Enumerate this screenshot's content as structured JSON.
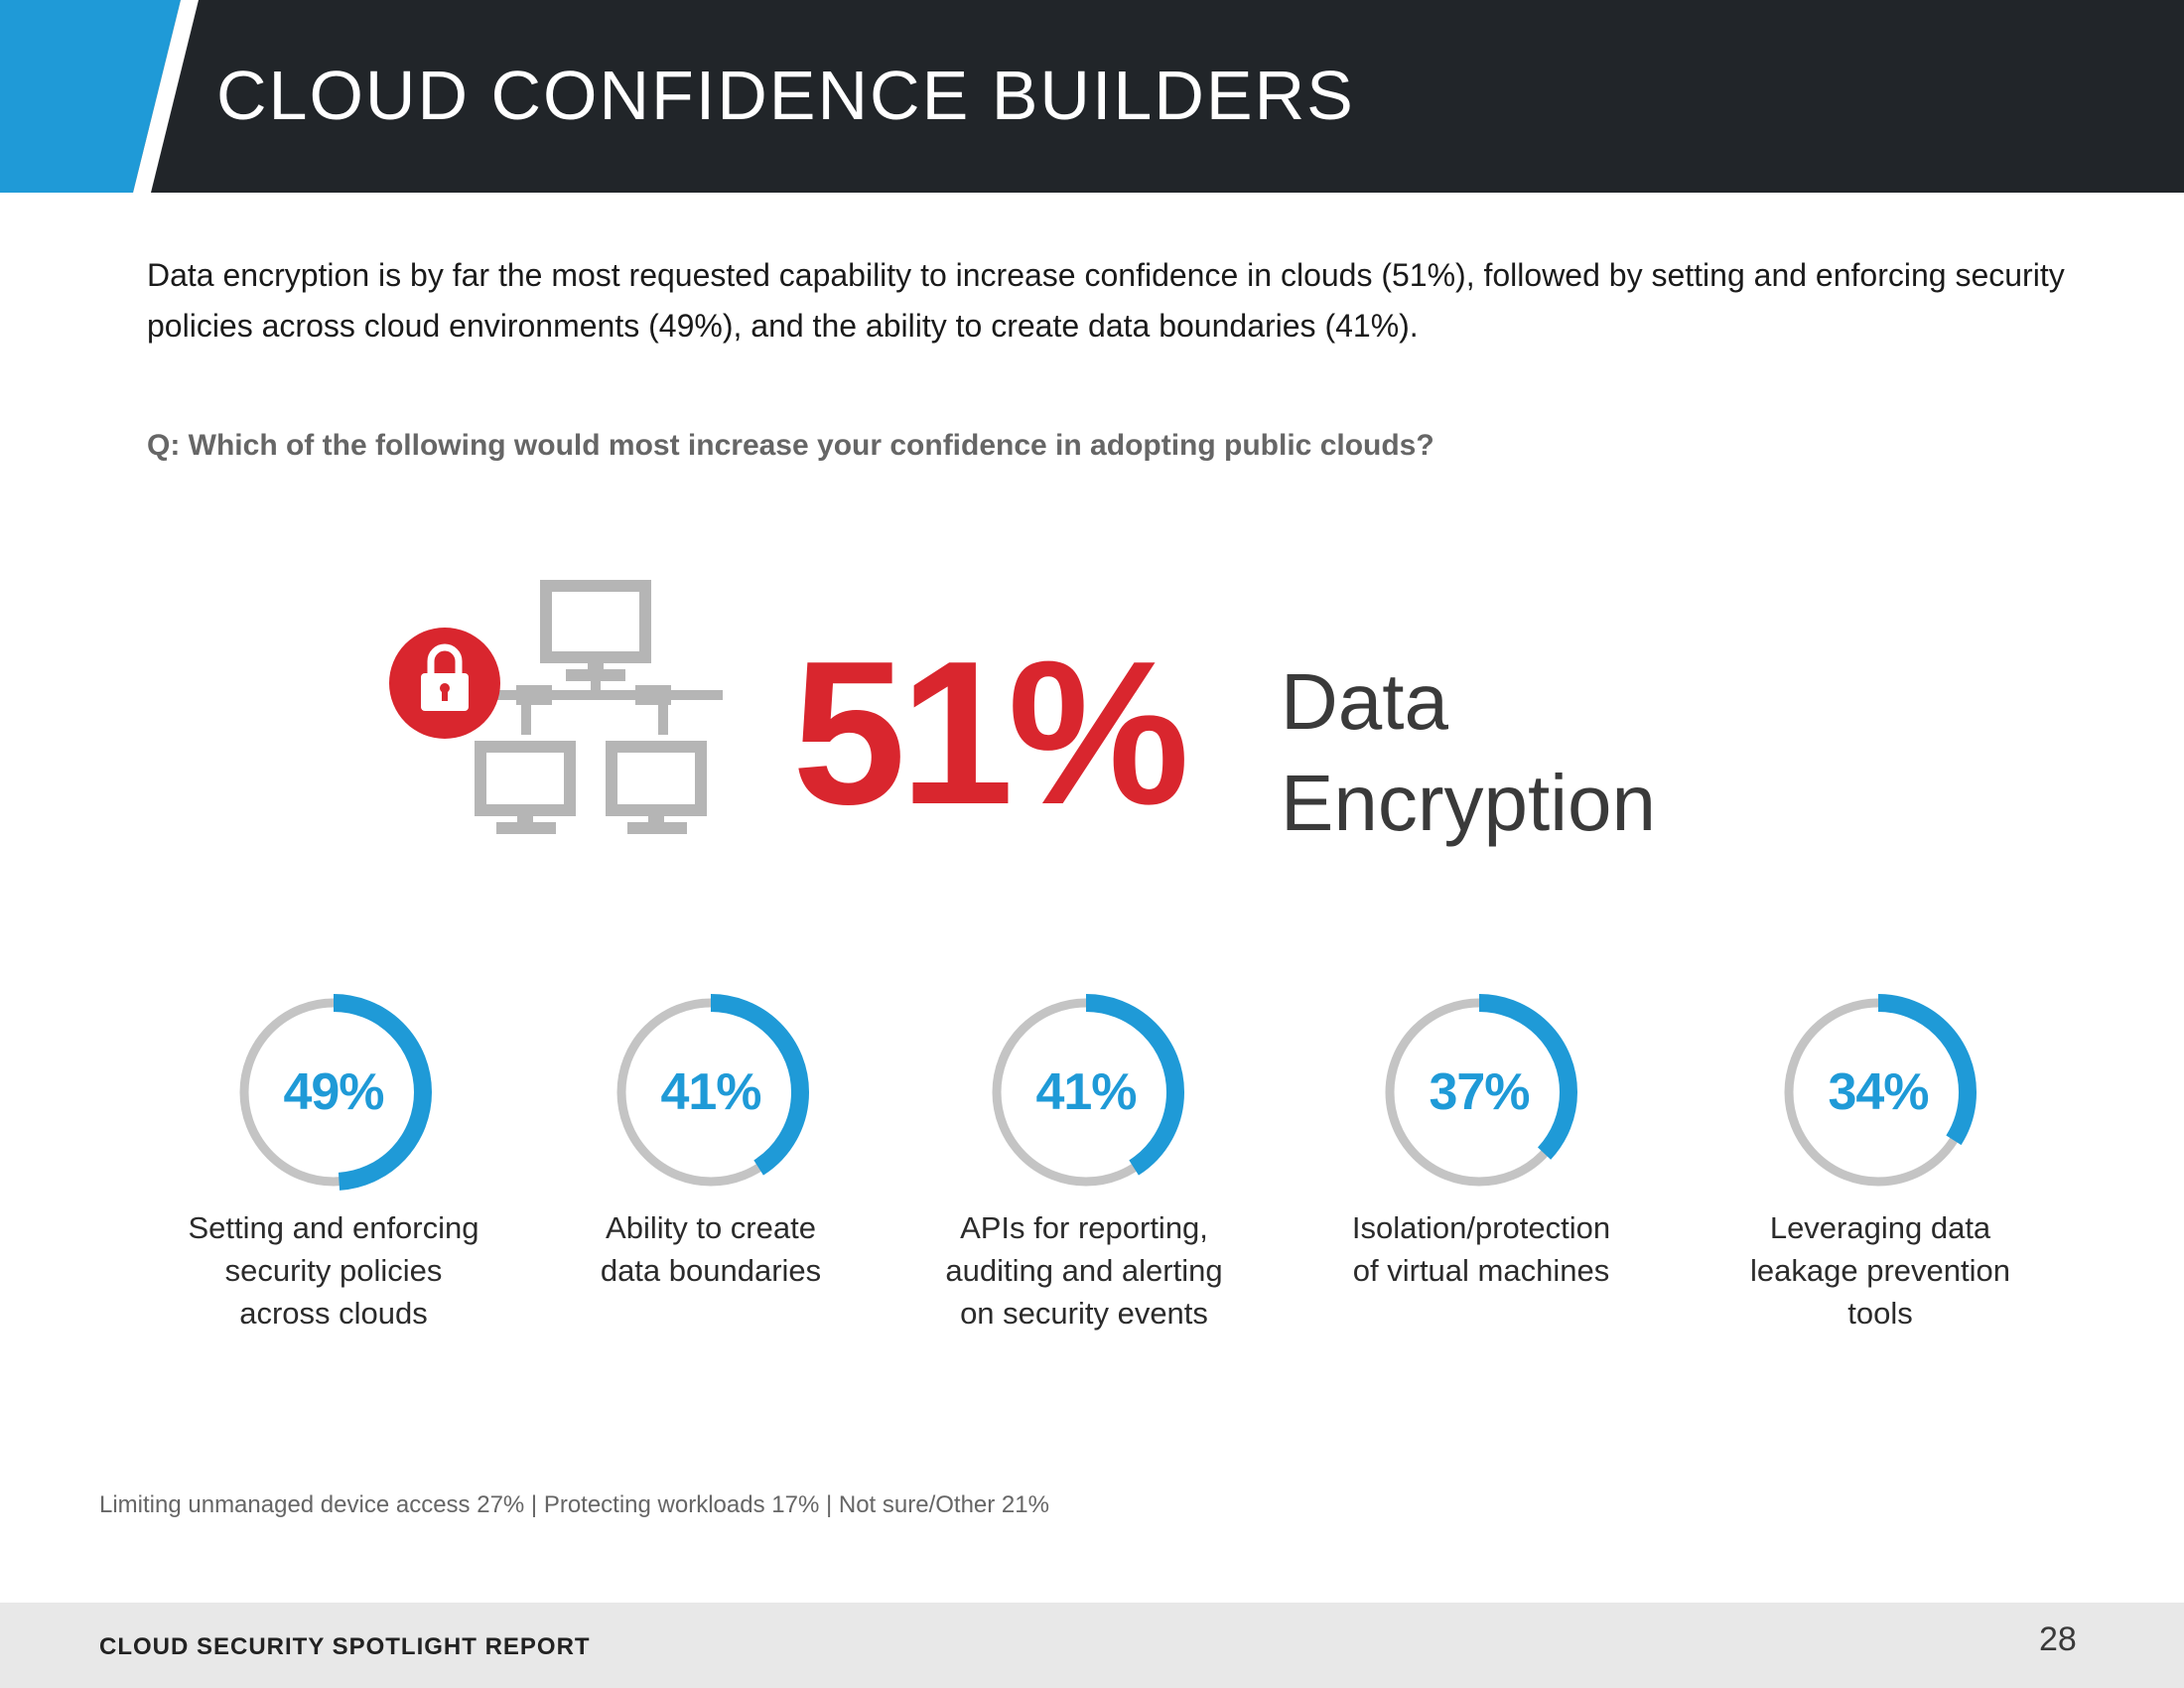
{
  "header": {
    "title": "CLOUD CONFIDENCE BUILDERS",
    "bar_color": "#212529",
    "accent_color": "#1f9ad7"
  },
  "intro": "Data encryption is by far the most requested capability to increase confidence in clouds (51%), followed by setting and enforcing security policies across cloud environments (49%), and the ability to create data boundaries (41%).",
  "question": "Q: Which of the following would most increase your confidence in adopting public clouds?",
  "hero": {
    "value": "51%",
    "label_line1": "Data",
    "label_line2": "Encryption",
    "icon": "network-lock-icon",
    "color": "#d9262e"
  },
  "chart_data": {
    "type": "donut",
    "series": [
      {
        "label": "Setting and enforcing security policies across clouds",
        "value": 49,
        "display": "49%"
      },
      {
        "label": "Ability to create data boundaries",
        "value": 41,
        "display": "41%"
      },
      {
        "label": "APIs for reporting, auditing and alerting on security events",
        "value": 41,
        "display": "41%"
      },
      {
        "label": "Isolation/protection of virtual machines",
        "value": 37,
        "display": "37%"
      },
      {
        "label": "Leveraging data leakage prevention tools",
        "value": 34,
        "display": "34%"
      }
    ],
    "captions": [
      [
        "Setting and enforcing",
        "security policies",
        "across clouds"
      ],
      [
        "Ability to create",
        "data boundaries"
      ],
      [
        "APIs for reporting,",
        "auditing and alerting",
        "on security events"
      ],
      [
        "Isolation/protection",
        "of virtual machines"
      ],
      [
        "Leveraging data",
        "leakage prevention",
        "tools"
      ]
    ],
    "fill_color": "#1f9ad7",
    "track_color": "#c4c4c4"
  },
  "footnote": "Limiting unmanaged device access 27%  |  Protecting workloads 17%  |  Not sure/Other 21%",
  "footer": {
    "title": "CLOUD SECURITY SPOTLIGHT REPORT",
    "page_number": "28"
  }
}
